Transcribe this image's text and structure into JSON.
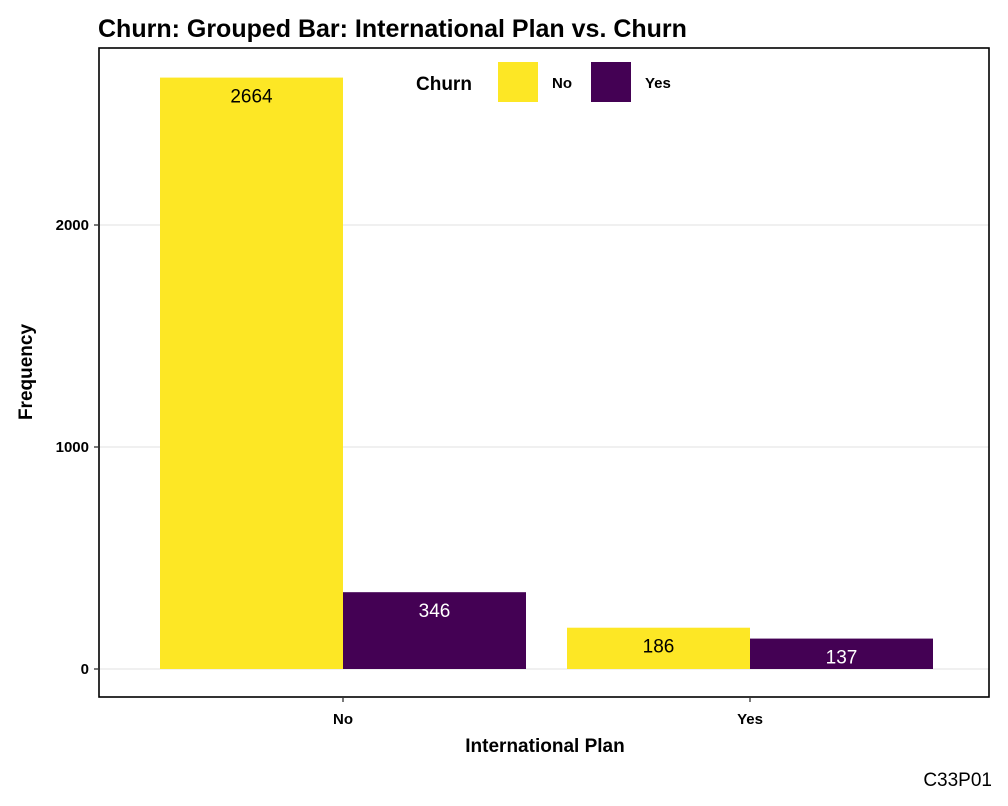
{
  "chart_data": {
    "type": "bar",
    "title": "Churn: Grouped Bar: International Plan vs. Churn",
    "xlabel": "International Plan",
    "ylabel": "Frequency",
    "caption": "C33P01",
    "categories": [
      "No",
      "Yes"
    ],
    "series": [
      {
        "name": "No",
        "color": "#FDE725",
        "label_color": "#000000",
        "values": [
          2664,
          186
        ]
      },
      {
        "name": "Yes",
        "color": "#440154",
        "label_color": "#FFFFFF",
        "values": [
          346,
          137
        ]
      }
    ],
    "legend": {
      "title": "Churn",
      "position": "top-center-inside"
    },
    "ylim": [
      -120,
      2800
    ],
    "yticks": [
      0,
      1000,
      2000
    ],
    "grid": {
      "horizontal": true,
      "vertical": false,
      "color": "#EBEBEB"
    }
  }
}
